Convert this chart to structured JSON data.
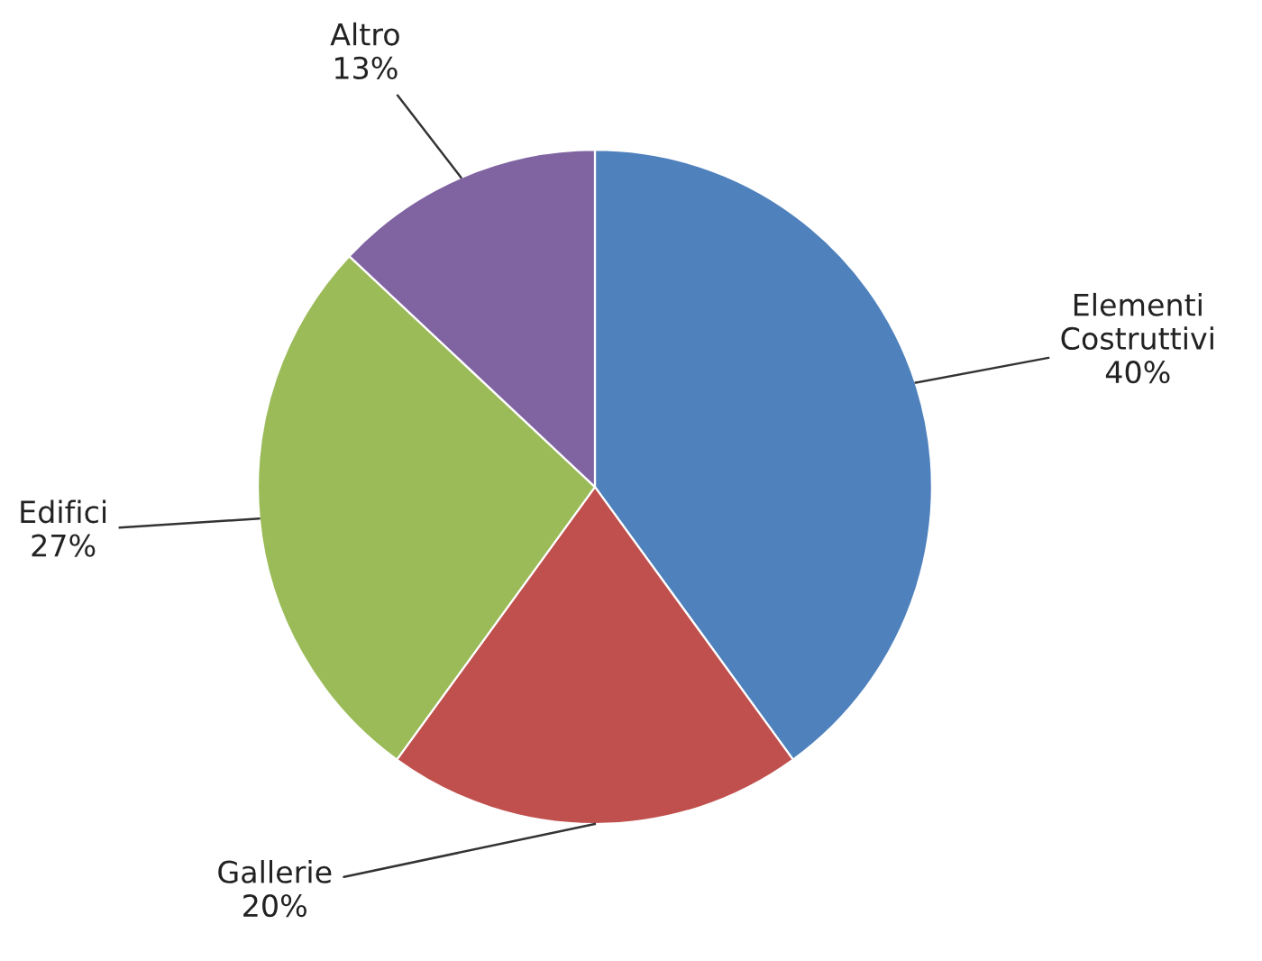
{
  "chart_data": {
    "type": "pie",
    "categories": [
      "Elementi Costruttivi",
      "Gallerie",
      "Edifici",
      "Altro"
    ],
    "values": [
      40,
      20,
      27,
      13
    ],
    "colors": [
      "#4f81bd",
      "#c0504d",
      "#9bbb59",
      "#8064a2"
    ],
    "value_labels": [
      "40%",
      "20%",
      "27%",
      "13%"
    ],
    "legend": false
  }
}
